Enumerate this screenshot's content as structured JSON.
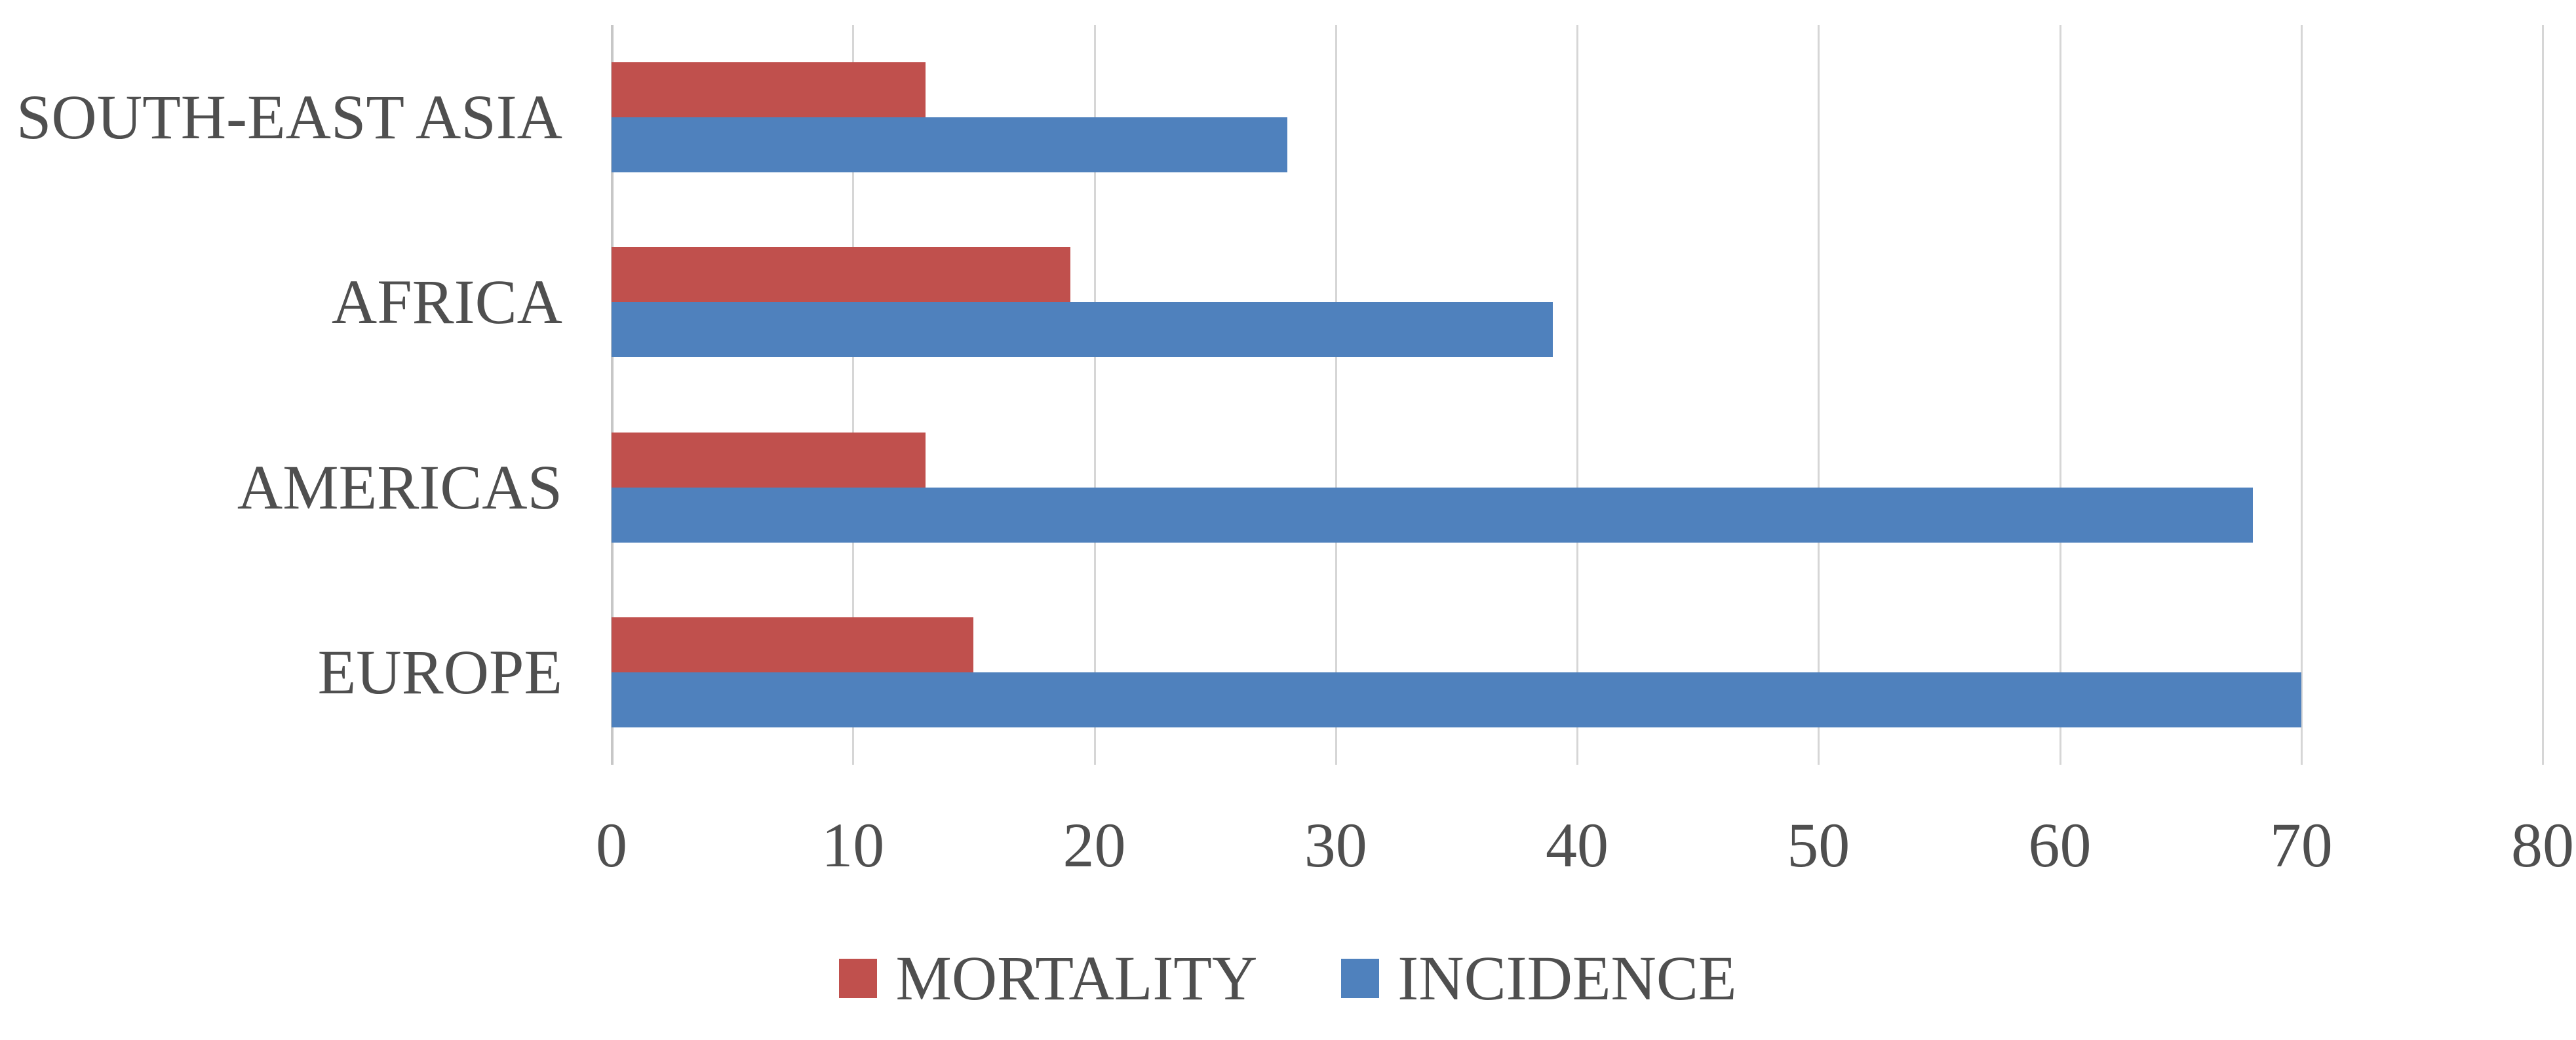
{
  "chart_data": {
    "type": "bar",
    "orientation": "horizontal",
    "title": "",
    "xlabel": "",
    "ylabel": "",
    "categories": [
      "SOUTH-EAST ASIA",
      "AFRICA",
      "AMERICAS",
      "EUROPE"
    ],
    "series": [
      {
        "name": "MORTALITY",
        "color": "#c0504d",
        "values": [
          13,
          19,
          13,
          15
        ]
      },
      {
        "name": "INCIDENCE",
        "color": "#4f81bd",
        "values": [
          28,
          39,
          68,
          70
        ]
      }
    ],
    "xlim": [
      0,
      80
    ],
    "xticks": [
      0,
      10,
      20,
      30,
      40,
      50,
      60,
      70,
      80
    ],
    "grid": "vertical-gridlines-on",
    "legend_position": "bottom-center",
    "colors": {
      "gridline": "#d6d6d6",
      "axis_line": "#c7c7c7",
      "text": "#4f4f4f",
      "background": "#ffffff"
    }
  }
}
